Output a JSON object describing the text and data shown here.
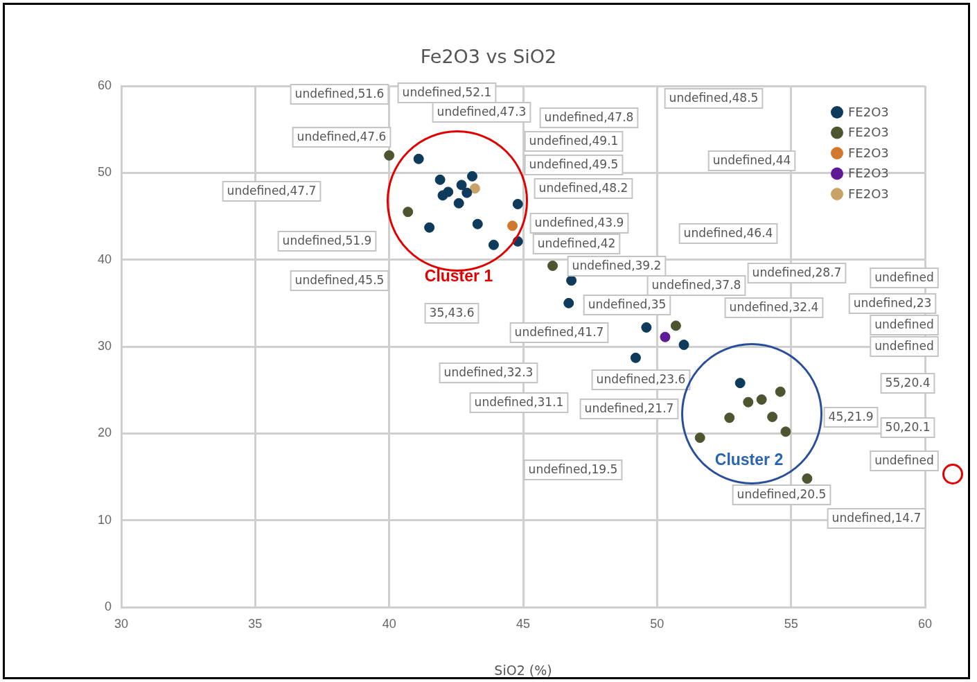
{
  "chart_data": {
    "type": "scatter",
    "title": "Fe2O3 vs SiO2",
    "xlabel": "SiO2 (%)",
    "xlim": [
      30,
      60
    ],
    "xticks": [
      30,
      35,
      40,
      45,
      50,
      55,
      60
    ],
    "ylim": [
      0,
      60
    ],
    "yticks": [
      0,
      10,
      20,
      30,
      40,
      50,
      60
    ],
    "grid": true,
    "legend": "top right",
    "marker": "circle",
    "series": [
      {
        "name": "FE2O3",
        "color": "#0e3a5c",
        "x": [
          41.1,
          41.9,
          42.2,
          42.0,
          42.7,
          42.9,
          43.1,
          42.6,
          41.5,
          43.3,
          43.9,
          44.8,
          44.8,
          46.7,
          46.8,
          49.6,
          49.2,
          51.0,
          53.1
        ],
        "values": [
          51.6,
          49.2,
          47.8,
          47.4,
          48.6,
          47.7,
          49.6,
          46.5,
          43.7,
          44.1,
          41.7,
          42.1,
          46.4,
          35.0,
          37.6,
          32.2,
          28.7,
          30.2,
          25.8
        ]
      },
      {
        "name": "FE2O3",
        "color": "#4d5530",
        "x": [
          40.0,
          40.7,
          46.1,
          50.7,
          52.7,
          53.4,
          53.9,
          54.6,
          54.3,
          51.6,
          54.8,
          55.6
        ],
        "values": [
          52.0,
          45.5,
          39.3,
          32.4,
          21.8,
          23.6,
          23.9,
          24.8,
          21.9,
          19.5,
          20.2,
          14.8
        ]
      },
      {
        "name": "FE2O3",
        "color": "#d2782c",
        "x": [
          44.6
        ],
        "values": [
          43.9
        ]
      },
      {
        "name": "FE2O3",
        "color": "#5f1a96",
        "x": [
          50.3
        ],
        "values": [
          31.1
        ]
      },
      {
        "name": "FE2O3",
        "color": "#c9a265",
        "x": [
          43.2
        ],
        "values": [
          48.2
        ]
      }
    ],
    "annotations": [
      "undefined,52.1",
      "undefined,47.3",
      "undefined,47.8",
      "undefined,51.6",
      "undefined,47.6",
      "undefined,48.5",
      "undefined,49.1",
      "undefined,49.5",
      "undefined,44",
      "undefined,47.7",
      "undefined,48.2",
      "undefined,42",
      "undefined,43.9",
      "undefined,46.4",
      "undefined,51.9",
      "undefined,37.8",
      "undefined,39.2",
      "undefined,28.7",
      "undefined",
      "undefined,45.5",
      "35,43.6",
      "undefined,35",
      "undefined,32.4",
      "undefined,23",
      "undefined",
      "undefined",
      "undefined,41.7",
      "undefined,32.3",
      "undefined,31.1",
      "undefined,23.6",
      "undefined,21.7",
      "45,21.9",
      "55,20.4",
      "50,20.1",
      "undefined",
      "undefined,19.5",
      "undefined,20.5",
      "undefined,14.7",
      "Cluster 1",
      "Cluster 2"
    ]
  }
}
